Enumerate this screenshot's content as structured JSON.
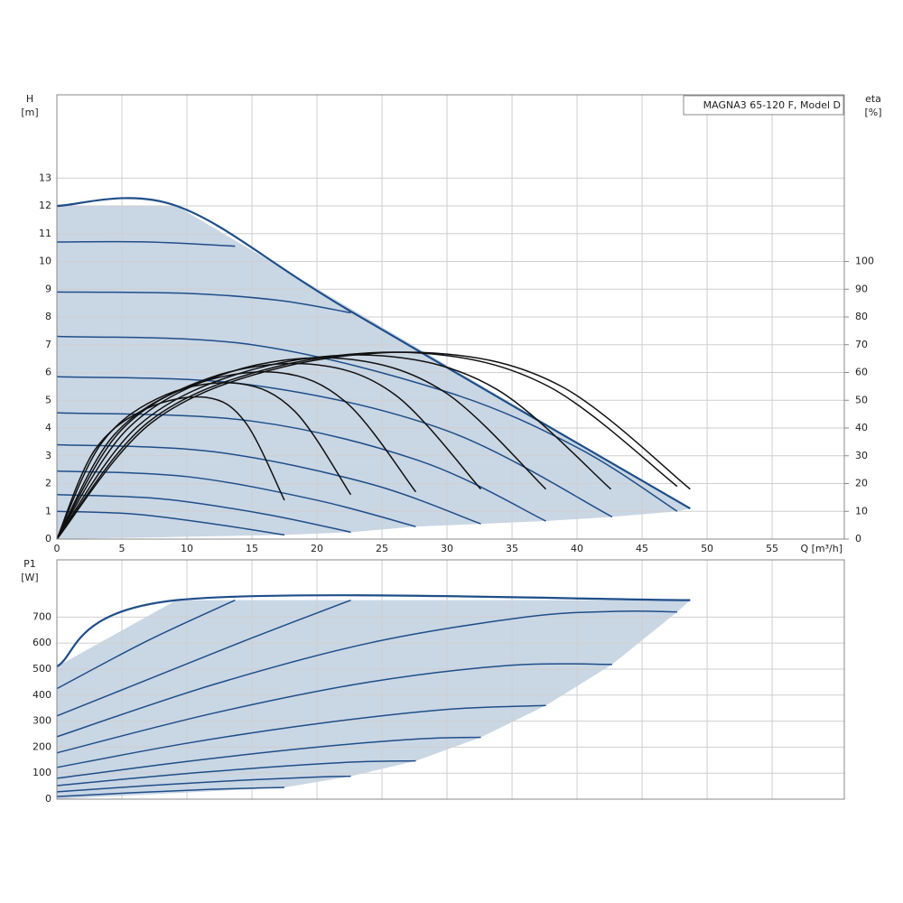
{
  "chart_data": [
    {
      "type": "line",
      "title": "MAGNA3 65-120 F, Model D",
      "ylabel": "H",
      "yunit": "[m]",
      "y2label": "eta",
      "y2unit": "[%]",
      "xlabel": "Q [m³/h]",
      "xlim": [
        0,
        60.55
      ],
      "xticks": [
        0,
        5,
        10,
        15,
        20,
        25,
        30,
        35,
        40,
        45,
        50,
        55
      ],
      "ylim": [
        0,
        16
      ],
      "yticks": [
        0,
        1,
        2,
        3,
        4,
        5,
        6,
        7,
        8,
        9,
        10,
        11,
        12,
        13
      ],
      "y2lim": [
        0,
        160
      ],
      "y2ticks": [
        0,
        10,
        20,
        30,
        40,
        50,
        60,
        70,
        80,
        90,
        100
      ],
      "grid": true,
      "area": {
        "color": "#c9d6e4",
        "x": [
          0,
          9.2,
          48.7,
          47.7,
          42.7,
          37.6,
          32.6,
          27.6,
          22.6,
          17.5,
          0
        ],
        "values": [
          12,
          12,
          1.1,
          1.0,
          0.8,
          0.65,
          0.55,
          0.45,
          0.25,
          0.15,
          0
        ]
      },
      "series": [
        {
          "color": "#1f4e89",
          "x": [
            0,
            9.2,
            22.6,
            48.7
          ],
          "values": [
            12,
            12,
            8.2,
            1.1
          ]
        },
        {
          "color": "#1f4e89",
          "x": [
            0,
            7,
            13.7
          ],
          "values": [
            10.7,
            10.7,
            10.55
          ]
        },
        {
          "color": "#1f4e89",
          "x": [
            0,
            10,
            17,
            22.6
          ],
          "values": [
            8.9,
            8.85,
            8.6,
            8.15
          ]
        },
        {
          "color": "#1f4e89",
          "x": [
            0,
            15,
            30,
            40,
            47.7
          ],
          "values": [
            7.3,
            7.0,
            5.3,
            3.3,
            1.0
          ]
        },
        {
          "color": "#1f4e89",
          "x": [
            0,
            15,
            30,
            42.7
          ],
          "values": [
            5.85,
            5.55,
            3.9,
            0.8
          ]
        },
        {
          "color": "#1f4e89",
          "x": [
            0,
            15,
            28,
            37.6
          ],
          "values": [
            4.55,
            4.25,
            2.8,
            0.65
          ]
        },
        {
          "color": "#1f4e89",
          "x": [
            0,
            12,
            24,
            32.6
          ],
          "values": [
            3.4,
            3.15,
            2.0,
            0.55
          ]
        },
        {
          "color": "#1f4e89",
          "x": [
            0,
            10,
            20,
            27.6
          ],
          "values": [
            2.45,
            2.25,
            1.4,
            0.45
          ]
        },
        {
          "color": "#1f4e89",
          "x": [
            0,
            8,
            16,
            22.6
          ],
          "values": [
            1.6,
            1.45,
            0.9,
            0.25
          ]
        },
        {
          "color": "#1f4e89",
          "x": [
            0,
            6,
            12,
            17.5
          ],
          "values": [
            1.0,
            0.9,
            0.55,
            0.15
          ]
        },
        {
          "color": "#111111",
          "axis": "y2",
          "x": [
            0,
            2.9,
            6.9,
            11.5,
            14.5,
            17.5
          ],
          "values": [
            0,
            32,
            47,
            51,
            42,
            14
          ]
        },
        {
          "color": "#111111",
          "axis": "y2",
          "x": [
            0,
            3.5,
            8.4,
            14,
            18.3,
            22.6
          ],
          "values": [
            0,
            35,
            52,
            56,
            46,
            16
          ]
        },
        {
          "color": "#111111",
          "axis": "y2",
          "x": [
            0,
            4.3,
            10.2,
            17,
            22.3,
            27.6
          ],
          "values": [
            0,
            37,
            55,
            60,
            49,
            17
          ]
        },
        {
          "color": "#111111",
          "axis": "y2",
          "x": [
            0,
            4.9,
            11.7,
            19.5,
            26,
            32.6
          ],
          "values": [
            0,
            39,
            58,
            63,
            52,
            18
          ]
        },
        {
          "color": "#111111",
          "axis": "y2",
          "x": [
            0,
            5.5,
            13.2,
            22,
            29.8,
            37.6
          ],
          "values": [
            0,
            40,
            60,
            65,
            53,
            18
          ]
        },
        {
          "color": "#111111",
          "axis": "y2",
          "x": [
            0,
            6.3,
            15,
            25,
            33.8,
            42.6
          ],
          "values": [
            0,
            41,
            61,
            66,
            54,
            18
          ]
        },
        {
          "color": "#111111",
          "axis": "y2",
          "x": [
            0,
            7,
            16.8,
            28,
            37.8,
            47.7
          ],
          "values": [
            0,
            42,
            62,
            67,
            55,
            19
          ]
        },
        {
          "color": "#111111",
          "axis": "y2",
          "x": [
            0,
            7.3,
            17.4,
            29,
            38.8,
            48.7
          ],
          "values": [
            0,
            42,
            62,
            67,
            55,
            18
          ]
        }
      ]
    },
    {
      "type": "line",
      "ylabel": "P1",
      "yunit": "[W]",
      "xlim": [
        0,
        60.55
      ],
      "xticks": [
        0,
        5,
        10,
        15,
        20,
        25,
        30,
        35,
        40,
        45,
        50,
        55
      ],
      "ylim": [
        0,
        920
      ],
      "yticks": [
        0,
        100,
        200,
        300,
        400,
        500,
        600,
        700
      ],
      "grid": true,
      "area": {
        "color": "#c9d6e4",
        "x": [
          0,
          9.2,
          48.7,
          47.7,
          42.7,
          37.6,
          32.6,
          27.6,
          22.6,
          17.5,
          0
        ],
        "values": [
          510,
          765,
          765,
          720,
          518,
          360,
          238,
          147,
          88,
          45,
          0
        ]
      },
      "series": [
        {
          "color": "#1f4e89",
          "x": [
            0,
            9.2,
            48.7
          ],
          "values": [
            510,
            765,
            765
          ]
        },
        {
          "color": "#1f4e89",
          "x": [
            0,
            7,
            13.7
          ],
          "values": [
            425,
            610,
            765
          ]
        },
        {
          "color": "#1f4e89",
          "x": [
            0,
            8,
            15,
            22.6
          ],
          "values": [
            320,
            480,
            620,
            765
          ]
        },
        {
          "color": "#1f4e89",
          "x": [
            0,
            12,
            24,
            36,
            43,
            47.7
          ],
          "values": [
            240,
            440,
            600,
            700,
            722,
            720
          ]
        },
        {
          "color": "#1f4e89",
          "x": [
            0,
            12,
            24,
            35,
            42.7
          ],
          "values": [
            178,
            330,
            450,
            515,
            518
          ]
        },
        {
          "color": "#1f4e89",
          "x": [
            0,
            10,
            20,
            30,
            37.6
          ],
          "values": [
            122,
            215,
            290,
            345,
            360
          ]
        },
        {
          "color": "#1f4e89",
          "x": [
            0,
            10,
            20,
            28,
            32.6
          ],
          "values": [
            80,
            145,
            200,
            232,
            238
          ]
        },
        {
          "color": "#1f4e89",
          "x": [
            0,
            8,
            16,
            23,
            27.6
          ],
          "values": [
            52,
            90,
            122,
            143,
            147
          ]
        },
        {
          "color": "#1f4e89",
          "x": [
            0,
            7,
            14,
            20,
            22.6
          ],
          "values": [
            28,
            52,
            72,
            85,
            88
          ]
        },
        {
          "color": "#1f4e89",
          "x": [
            0,
            6,
            12,
            17.5
          ],
          "values": [
            10,
            25,
            38,
            45
          ]
        }
      ]
    }
  ]
}
